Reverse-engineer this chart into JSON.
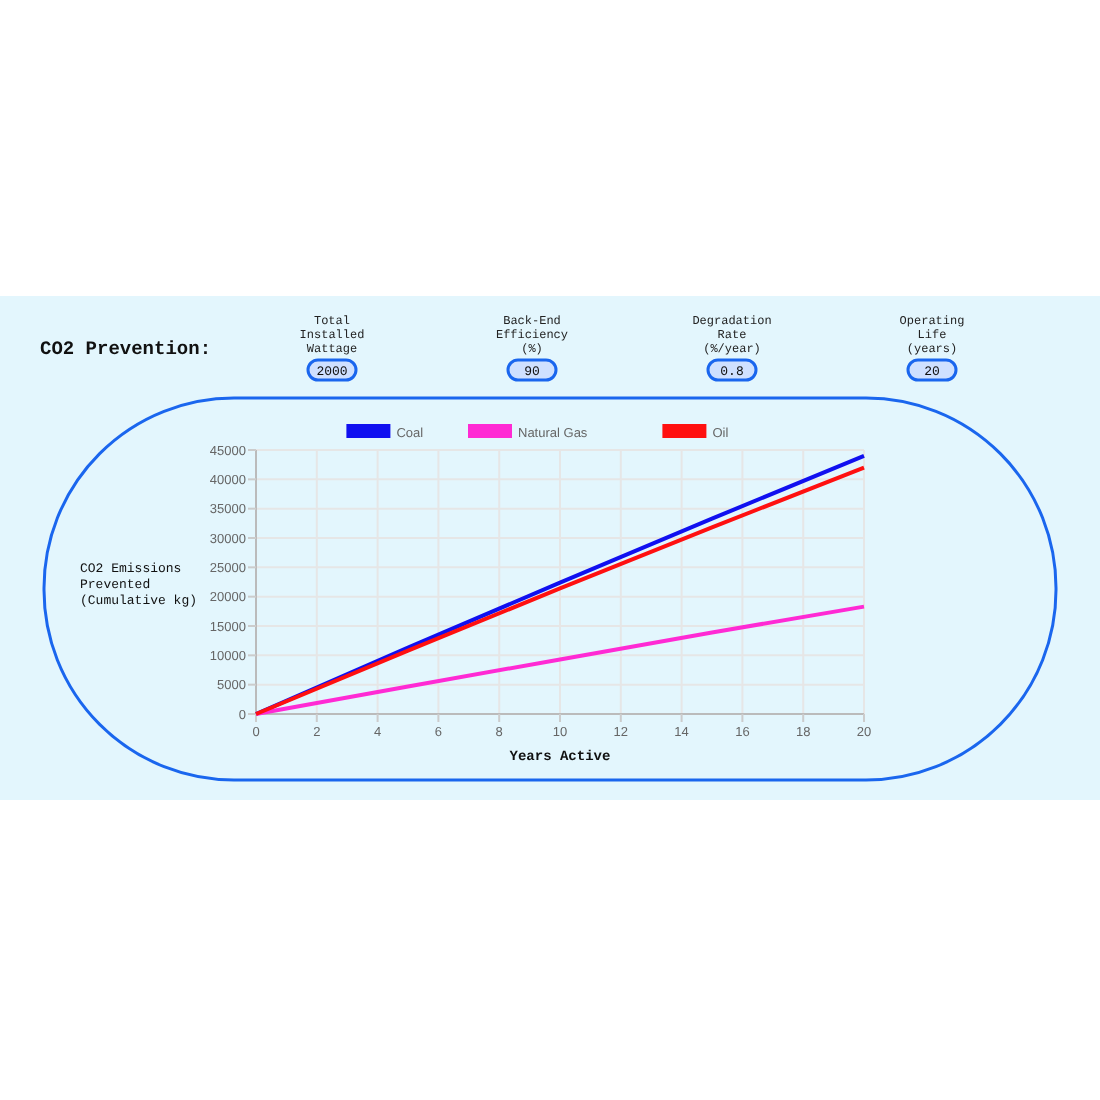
{
  "chart_data": {
    "type": "line",
    "title": "CO2 Prevention:",
    "xlabel": "Years Active",
    "ylabel": "CO2 Emissions Prevented (Cumulative kg)",
    "annotations": [
      "Total Installed Wattage",
      "2000",
      "Back-End Efficiency (%)",
      "90",
      "Degradation Rate (%/year)",
      "0.8",
      "Operating Life (years)",
      "20"
    ],
    "x": [
      0,
      5,
      10,
      15,
      20
    ],
    "series": [
      {
        "name": "Coal",
        "color": "#1010f0",
        "values": [
          0,
          11300,
          22400,
          33300,
          44000
        ]
      },
      {
        "name": "Natural Gas",
        "color": "#ff2ad4",
        "values": [
          0,
          4700,
          9300,
          13900,
          18300
        ]
      },
      {
        "name": "Oil",
        "color": "#ff1010",
        "values": [
          0,
          10800,
          21400,
          31800,
          42000
        ]
      }
    ],
    "xlim": [
      0,
      20
    ],
    "xticks": [
      0,
      2,
      4,
      6,
      8,
      10,
      12,
      14,
      16,
      18,
      20
    ],
    "ylim": [
      0,
      45000
    ],
    "yticks": [
      0,
      5000,
      10000,
      15000,
      20000,
      25000,
      30000,
      35000,
      40000,
      45000
    ],
    "grid": true,
    "legend": "top",
    "marker": "none",
    "line_style": "solid"
  }
}
